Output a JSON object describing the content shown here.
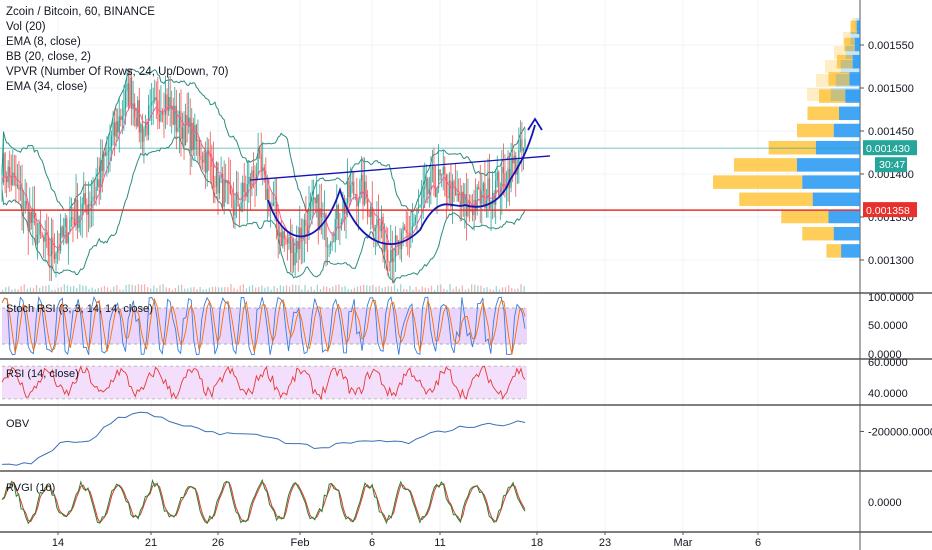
{
  "header": {
    "symbol_line": "Zcoin / Bitcoin, 60, BINANCE",
    "indicators": [
      "Vol (20)",
      "EMA (8, close)",
      "BB (20, close, 2)",
      "VPVR (Number Of Rows, 24, Up/Down, 70)",
      "EMA (34, close)"
    ]
  },
  "panes": {
    "stoch_label": "Stoch RSI (3, 3, 14, 14, close)",
    "rsi_label": "RSI (14, close)",
    "obv_label": "OBV",
    "rvgi_label": "RVGI (10)"
  },
  "price_axis": {
    "ticks": [
      "0.001550",
      "0.001500",
      "0.001450",
      "0.001400",
      "0.001350",
      "0.001300"
    ],
    "last_price": "0.001430",
    "countdown": "30:47",
    "red_line_price": "0.001358"
  },
  "stoch_axis": {
    "ticks": [
      "100.0000",
      "50.0000",
      "0.0000"
    ]
  },
  "rsi_axis": {
    "ticks": [
      "60.0000",
      "40.0000"
    ]
  },
  "obv_axis": {
    "ticks": [
      "-200000.0000"
    ]
  },
  "rvgi_axis": {
    "ticks": [
      "0.0000"
    ]
  },
  "time_axis": {
    "labels": [
      "14",
      "21",
      "26",
      "Feb",
      "6",
      "11",
      "18",
      "23",
      "Mar",
      "6"
    ]
  },
  "colors": {
    "up": "#26a69a",
    "down": "#ef5350",
    "bb": "#2e8b7f",
    "ema": "#f06292",
    "trendline": "#1414b4",
    "support": "#e8302c",
    "last": "#26a69a",
    "vp_up": "#ffc43d",
    "vp_down": "#2196f3",
    "stoch_k": "#3b7ddd",
    "stoch_d": "#ff6d00",
    "rsi": "#e53935",
    "obv": "#3d6fb6",
    "rvgi": "#2e7d32",
    "rvgi_sig": "#e53935",
    "band_fill": "#e1c5fb",
    "rsi_band": "#f2dcfb"
  },
  "chart_data": {
    "type": "candlestick",
    "title": "Zcoin / Bitcoin, 60, BINANCE",
    "price_range": [
      0.00128,
      0.0016
    ],
    "key_levels": {
      "support_red_line": 0.001358,
      "last_price": 0.00143
    },
    "annotations": [
      "ascending trendline over inverse head-and-shoulders",
      "projected arrow up"
    ],
    "price_path": [
      0.00141,
      0.00139,
      0.00136,
      0.00133,
      0.00131,
      0.00132,
      0.00135,
      0.00136,
      0.00138,
      0.00142,
      0.00146,
      0.0015,
      0.00145,
      0.00147,
      0.00149,
      0.00146,
      0.00145,
      0.00143,
      0.00141,
      0.00138,
      0.00136,
      0.00138,
      0.00141,
      0.00137,
      0.00133,
      0.00131,
      0.00134,
      0.00136,
      0.00133,
      0.00135,
      0.00138,
      0.00138,
      0.00135,
      0.00132,
      0.00131,
      0.00133,
      0.00136,
      0.00139,
      0.00139,
      0.00137,
      0.00136,
      0.00137,
      0.00138,
      0.00139,
      0.00141,
      0.00143
    ],
    "volume_profile": {
      "levels": [
        0.00131,
        0.00133,
        0.00135,
        0.00137,
        0.00139,
        0.00141,
        0.00143,
        0.00145,
        0.00147,
        0.00149,
        0.00151,
        0.00153,
        0.00155,
        0.00157
      ],
      "up": [
        14,
        30,
        45,
        70,
        85,
        60,
        45,
        35,
        30,
        25,
        20,
        15,
        10,
        6
      ],
      "down": [
        18,
        25,
        30,
        45,
        55,
        60,
        42,
        25,
        20,
        14,
        10,
        7,
        5,
        3
      ]
    },
    "stoch_rsi": {
      "range": [
        0,
        100
      ],
      "upper": 80,
      "lower": 20
    },
    "rsi": {
      "range": [
        25,
        75
      ],
      "upper": 70,
      "lower": 30
    },
    "obv": [
      -340000,
      -340000,
      -250000,
      -240000,
      -140000,
      -120000,
      -170000,
      -200000,
      -210000,
      -220000,
      -250000,
      -270000,
      -250000,
      -240000,
      -250000,
      -200000,
      -180000,
      -170000,
      -160000
    ]
  }
}
